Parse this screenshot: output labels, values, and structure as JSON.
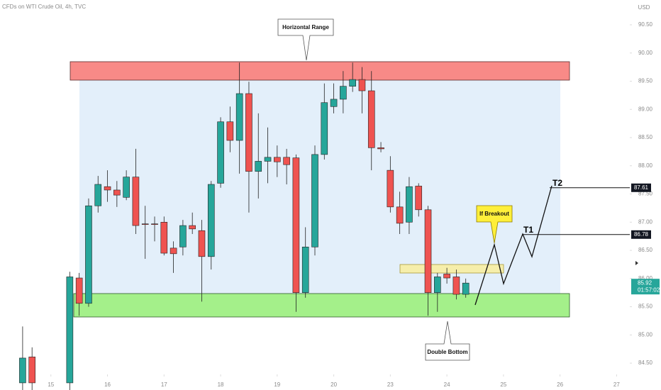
{
  "chart_data": {
    "type": "candlestick",
    "title": "CFDs on WTI Crude Oil, 4h, TVC",
    "currency": "USD",
    "x": [
      0,
      1,
      5,
      6,
      7,
      8,
      9,
      10,
      11,
      12,
      13,
      14,
      15,
      16,
      17,
      18,
      19,
      20,
      21,
      22,
      23,
      24,
      25,
      26,
      27,
      28,
      29,
      30,
      31,
      32,
      33,
      34,
      35,
      36,
      37,
      38,
      39,
      40,
      41,
      42,
      43,
      44,
      45,
      46,
      47
    ],
    "open": [
      84.15,
      84.61,
      84.15,
      86.01,
      85.56,
      87.29,
      87.63,
      87.57,
      87.44,
      87.8,
      86.97,
      86.97,
      87.0,
      86.54,
      86.56,
      86.94,
      86.85,
      86.39,
      87.69,
      88.78,
      88.45,
      89.28,
      87.9,
      88.08,
      88.15,
      88.15,
      88.14,
      85.75,
      86.56,
      88.2,
      89.05,
      89.18,
      89.41,
      89.53,
      89.33,
      88.32,
      87.92,
      87.27,
      87.0,
      87.64,
      87.22,
      85.75,
      86.08,
      86.03,
      85.72
    ],
    "high": [
      85.15,
      84.78,
      86.12,
      86.1,
      87.42,
      87.82,
      87.92,
      87.73,
      87.92,
      88.3,
      87.29,
      87.1,
      87.1,
      86.66,
      87.04,
      87.17,
      87.04,
      87.73,
      88.86,
      89.05,
      89.83,
      89.49,
      88.93,
      88.68,
      88.36,
      88.3,
      88.2,
      86.91,
      88.36,
      89.46,
      89.46,
      89.68,
      89.83,
      89.75,
      89.68,
      88.42,
      88.17,
      87.54,
      87.8,
      87.69,
      87.29,
      86.1,
      86.19,
      86.16,
      86.0
    ],
    "low": [
      84.0,
      84.0,
      84.0,
      85.34,
      85.5,
      87.17,
      87.36,
      87.27,
      87.39,
      86.79,
      86.35,
      86.66,
      86.41,
      86.1,
      86.41,
      86.79,
      85.59,
      86.16,
      87.61,
      88.24,
      87.86,
      87.17,
      87.42,
      87.69,
      87.8,
      87.67,
      85.41,
      85.66,
      86.41,
      88.11,
      88.93,
      88.93,
      89.31,
      88.93,
      87.92,
      88.24,
      87.17,
      86.79,
      86.79,
      87.1,
      85.34,
      85.41,
      85.91,
      85.63,
      85.66
    ],
    "close": [
      84.59,
      84.15,
      86.03,
      85.56,
      87.29,
      87.67,
      87.57,
      87.48,
      87.8,
      86.94,
      86.96,
      86.96,
      86.45,
      86.44,
      86.94,
      86.88,
      86.39,
      87.67,
      88.78,
      88.45,
      89.28,
      87.9,
      88.08,
      88.15,
      88.07,
      88.02,
      85.75,
      86.56,
      88.2,
      89.12,
      89.18,
      89.41,
      89.53,
      89.33,
      88.32,
      88.3,
      87.27,
      86.98,
      87.63,
      87.22,
      85.75,
      86.03,
      86.01,
      85.72,
      85.92
    ],
    "up_color": "#26a69a",
    "down_color": "#ef5350",
    "xlim": [
      -2.4,
      64.4
    ],
    "xticks": [
      {
        "value": 3,
        "label": "15"
      },
      {
        "value": 9,
        "label": "16"
      },
      {
        "value": 15,
        "label": "17"
      },
      {
        "value": 21,
        "label": "18"
      },
      {
        "value": 27,
        "label": "19"
      },
      {
        "value": 33,
        "label": "20"
      },
      {
        "value": 39,
        "label": "23"
      },
      {
        "value": 45,
        "label": "24"
      },
      {
        "value": 51,
        "label": "25"
      },
      {
        "value": 57,
        "label": "26"
      },
      {
        "value": 63,
        "label": "27"
      }
    ],
    "ylim": [
      84.3,
      90.94
    ],
    "yticks": [
      {
        "value": 90.5,
        "label": "90.50"
      },
      {
        "value": 90,
        "label": "90.00"
      },
      {
        "value": 89.5,
        "label": "89.50"
      },
      {
        "value": 89,
        "label": "89.00"
      },
      {
        "value": 88.5,
        "label": "88.50"
      },
      {
        "value": 88,
        "label": "88.00"
      },
      {
        "value": 87.5,
        "label": "87.50"
      },
      {
        "value": 87,
        "label": "87.00"
      },
      {
        "value": 86.5,
        "label": "86.50"
      },
      {
        "value": 86,
        "label": "86.00"
      },
      {
        "value": 85.5,
        "label": "85.50"
      },
      {
        "value": 85,
        "label": "85.00"
      },
      {
        "value": 84.5,
        "label": "84.50"
      }
    ],
    "price_lines": [
      87.61,
      86.78
    ],
    "last_price": 85.92,
    "countdown": "01:57:02",
    "annotations": [
      "Horizontal Range",
      "If Breakout",
      "Double Bottom",
      "T1",
      "T2"
    ]
  }
}
